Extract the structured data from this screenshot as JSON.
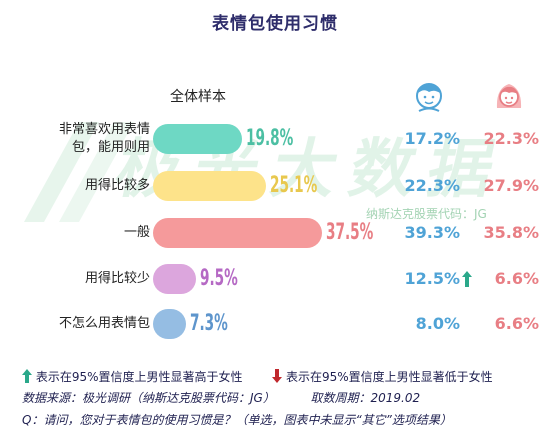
{
  "title": "表情包使用习惯",
  "sample_label": "全体样本",
  "legend": {
    "male_icon": "boy-avatar-icon",
    "female_icon": "girl-avatar-icon"
  },
  "watermark": {
    "text": "极光大数据",
    "code": "纳斯达克股票代码：JG"
  },
  "chart_data": {
    "type": "bar",
    "orientation": "horizontal",
    "title": "表情包使用习惯",
    "categories": [
      "非常喜欢用表情包，能用则用",
      "用得比较多",
      "一般",
      "用得比较少",
      "不怎么用表情包"
    ],
    "category_lines": [
      [
        "非常喜欢用表情",
        "包，能用则用"
      ],
      [
        "用得比较多"
      ],
      [
        "一般"
      ],
      [
        "用得比较少"
      ],
      [
        "不怎么用表情包"
      ]
    ],
    "series": [
      {
        "name": "全体样本",
        "values": [
          19.8,
          25.1,
          37.5,
          9.5,
          7.3
        ],
        "labels": [
          "19.8%",
          "25.1%",
          "37.5%",
          "9.5%",
          "7.3%"
        ],
        "colors": [
          "#6ed8c4",
          "#fde38a",
          "#f59a9b",
          "#dca6dd",
          "#95bde3"
        ],
        "label_colors": [
          "#4cbfa3",
          "#e8c84e",
          "#e87e84",
          "#b569c4",
          "#5e95cc"
        ]
      },
      {
        "name": "male",
        "values": [
          17.2,
          22.3,
          39.3,
          12.5,
          8.0
        ],
        "labels": [
          "17.2%",
          "22.3%",
          "39.3%",
          "12.5%",
          "8.0%"
        ],
        "significance": [
          "",
          "",
          "",
          "up",
          ""
        ],
        "color": "#4fa3d6"
      },
      {
        "name": "female",
        "values": [
          22.3,
          27.9,
          35.8,
          6.6,
          6.6
        ],
        "labels": [
          "22.3%",
          "27.9%",
          "35.8%",
          "6.6%",
          "6.6%"
        ],
        "color": "#e87e84"
      }
    ],
    "xlim": [
      0,
      40
    ],
    "grid": false
  },
  "footer": {
    "up_legend": "表示在95%置信度上男性显著高于女性",
    "down_legend": "表示在95%置信度上男性显著低于女性",
    "up_color": "#2aa88a",
    "down_color": "#c0282d",
    "source": "数据来源：极光调研（纳斯达克股票代码：JG）",
    "period": "取数周期：2019.02",
    "question": "Q：请问，您对于表情包的使用习惯是？（单选，图表中未显示“其它”选项结果）"
  }
}
